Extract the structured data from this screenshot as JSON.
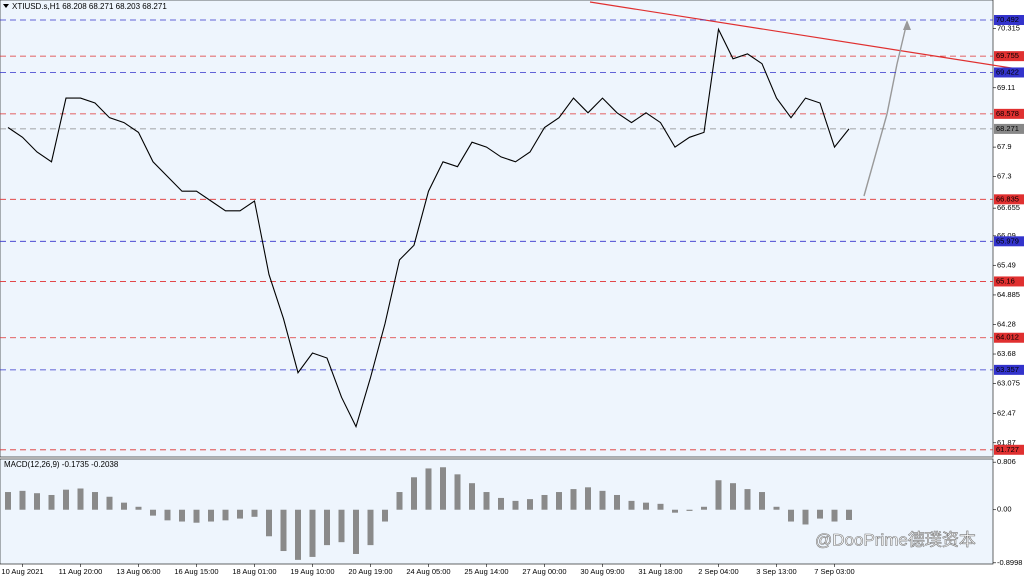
{
  "chart_data": [
    {
      "type": "line",
      "title": "XTIUSD.s,H1  68.208 68.271 68.203 68.271",
      "categories": [
        null,
        "10 Aug 2021",
        null,
        null,
        null,
        "11 Aug 20:00",
        null,
        null,
        null,
        "13 Aug 06:00",
        null,
        null,
        null,
        "16 Aug 15:00",
        null,
        null,
        null,
        "18 Aug 01:00",
        null,
        null,
        null,
        "19 Aug 10:00",
        null,
        null,
        null,
        "20 Aug 19:00",
        null,
        null,
        null,
        "24 Aug 05:00",
        null,
        null,
        null,
        "25 Aug 14:00",
        null,
        null,
        null,
        "27 Aug 00:00",
        null,
        null,
        null,
        "30 Aug 09:00",
        null,
        null,
        null,
        "31 Aug 18:00",
        null,
        null,
        null,
        "2 Sep 04:00",
        null,
        null,
        null,
        "3 Sep 13:00",
        null,
        null,
        null,
        "7 Sep 03:00",
        null
      ],
      "series": [
        {
          "color": "#000000",
          "values": [
            68.3,
            68.1,
            67.8,
            67.6,
            68.9,
            68.9,
            68.8,
            68.5,
            68.4,
            68.2,
            67.6,
            67.3,
            67.0,
            67.0,
            66.8,
            66.6,
            66.6,
            66.8,
            65.3,
            64.4,
            63.3,
            63.7,
            63.6,
            62.8,
            62.2,
            63.2,
            64.3,
            65.6,
            65.9,
            67.0,
            67.6,
            67.5,
            68.0,
            67.9,
            67.7,
            67.6,
            67.8,
            68.3,
            68.5,
            68.9,
            68.6,
            68.9,
            68.6,
            68.4,
            68.6,
            68.4,
            67.9,
            68.1,
            68.2,
            70.3,
            69.7,
            69.8,
            69.6,
            68.9,
            68.5,
            68.9,
            68.8,
            67.9,
            68.271
          ]
        }
      ],
      "ylim": [
        61.58,
        70.9
      ],
      "yticks": [
        70.315,
        69.11,
        67.9,
        67.3,
        66.655,
        66.09,
        65.49,
        64.885,
        64.28,
        63.68,
        63.075,
        62.47,
        61.87
      ],
      "levels": [
        {
          "value": 70.492,
          "color": "#3333cc"
        },
        {
          "value": 69.755,
          "color": "#e03030"
        },
        {
          "value": 69.422,
          "color": "#3333cc"
        },
        {
          "value": 68.578,
          "color": "#e03030"
        },
        {
          "value": 68.271,
          "color": "#888888"
        },
        {
          "value": 66.835,
          "color": "#e03030"
        },
        {
          "value": 65.979,
          "color": "#3333cc"
        },
        {
          "value": 65.16,
          "color": "#e03030"
        },
        {
          "value": 64.012,
          "color": "#e03030"
        },
        {
          "value": 63.357,
          "color": "#3333cc"
        },
        {
          "value": 61.727,
          "color": "#e03030"
        }
      ]
    },
    {
      "type": "bar",
      "title": "MACD(12,26,9) -0.1735 -0.2038",
      "color": "#8a8a8a",
      "values": [
        0.3,
        0.32,
        0.28,
        0.25,
        0.34,
        0.36,
        0.3,
        0.22,
        0.12,
        0.05,
        -0.1,
        -0.18,
        -0.2,
        -0.22,
        -0.2,
        -0.18,
        -0.15,
        -0.12,
        -0.45,
        -0.7,
        -0.85,
        -0.8,
        -0.6,
        -0.55,
        -0.75,
        -0.6,
        -0.2,
        0.3,
        0.55,
        0.7,
        0.72,
        0.6,
        0.45,
        0.3,
        0.2,
        0.15,
        0.18,
        0.25,
        0.3,
        0.35,
        0.38,
        0.32,
        0.25,
        0.15,
        0.12,
        0.1,
        -0.05,
        -0.02,
        0.05,
        0.5,
        0.45,
        0.35,
        0.3,
        0.05,
        -0.2,
        -0.25,
        -0.15,
        -0.2,
        -0.1735
      ],
      "ylim": [
        -0.92,
        0.86
      ],
      "yticks": [
        0.806,
        {
          "value": 0,
          "label": "0.00"
        },
        -0.8998
      ]
    }
  ],
  "watermark": "@DooPrime德璞资本"
}
